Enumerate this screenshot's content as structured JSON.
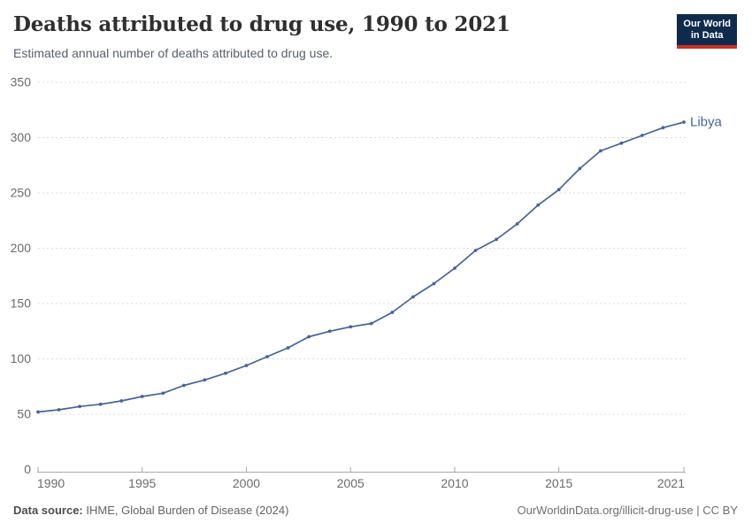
{
  "header": {
    "title": "Deaths attributed to drug use, 1990 to 2021",
    "subtitle": "Estimated annual number of deaths attributed to drug use."
  },
  "logo": {
    "line1": "Our World",
    "line2": "in Data",
    "bg_color": "#0e2b4d",
    "bar_color": "#cb3022"
  },
  "chart_data": {
    "type": "line",
    "title": "Deaths attributed to drug use, 1990 to 2021",
    "xlabel": "",
    "ylabel": "",
    "x": [
      1990,
      1991,
      1992,
      1993,
      1994,
      1995,
      1996,
      1997,
      1998,
      1999,
      2000,
      2001,
      2002,
      2003,
      2004,
      2005,
      2006,
      2007,
      2008,
      2009,
      2010,
      2011,
      2012,
      2013,
      2014,
      2015,
      2016,
      2017,
      2018,
      2019,
      2020,
      2021
    ],
    "series": [
      {
        "name": "Libya",
        "color": "#46639b",
        "values": [
          52,
          54,
          57,
          59,
          62,
          66,
          69,
          76,
          81,
          87,
          94,
          102,
          110,
          120,
          125,
          129,
          132,
          142,
          156,
          168,
          182,
          198,
          208,
          222,
          239,
          253,
          272,
          288,
          295,
          302,
          309,
          314
        ]
      }
    ],
    "ylim": [
      0,
      350
    ],
    "yticks": [
      0,
      50,
      100,
      150,
      200,
      250,
      300,
      350
    ],
    "xticks": [
      1990,
      1995,
      2000,
      2005,
      2010,
      2015,
      2021
    ],
    "grid": "horizontal-dashed",
    "legend": "end-of-line-label",
    "grid_color": "#dcdcdc",
    "axis_color": "#a9a9a9",
    "tick_label_color": "#6b6b6b"
  },
  "footer": {
    "source_label": "Data source:",
    "source_text": " IHME, Global Burden of Disease (2024)",
    "credit": "OurWorldinData.org/illicit-drug-use | CC BY"
  }
}
